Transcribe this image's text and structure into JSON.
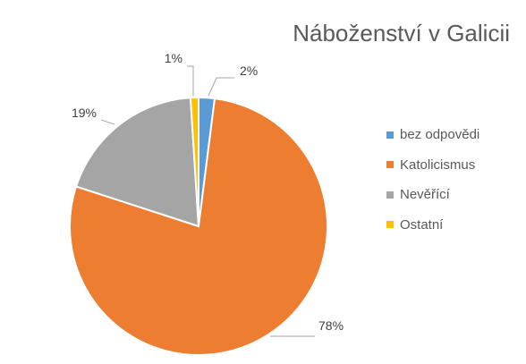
{
  "chart_data": {
    "type": "pie",
    "title": "Náboženství v Galicii",
    "categories": [
      "bez odpovědi",
      "Katolicismus",
      "Nevěřící",
      "Ostatní"
    ],
    "values": [
      2,
      78,
      19,
      1
    ],
    "data_labels": [
      "2%",
      "78%",
      "19%",
      "1%"
    ],
    "colors": [
      "#5B9BD5",
      "#ED7D31",
      "#A5A5A5",
      "#FFC000"
    ],
    "legend_position": "right"
  }
}
